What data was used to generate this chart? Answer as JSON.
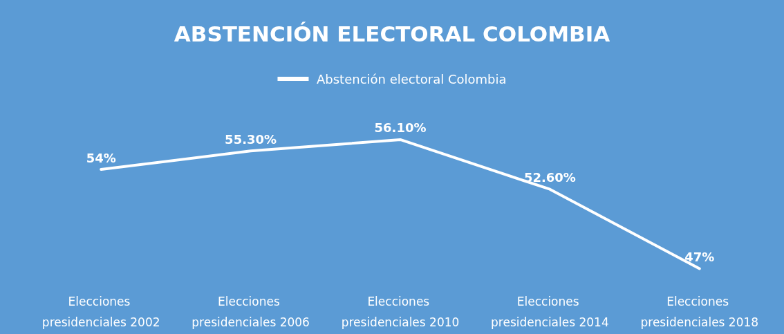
{
  "chart_data": {
    "type": "line",
    "title": "ABSTENCIÓN ELECTORAL COLOMBIA",
    "categories": [
      "Elecciones presidenciales 2002",
      "Elecciones presidenciales 2006",
      "Elecciones presidenciales 2010",
      "Elecciones presidenciales 2014",
      "Elecciones presidenciales 2018"
    ],
    "series": [
      {
        "name": "Abstención electoral Colombia",
        "color": "#ffffff",
        "values": [
          54,
          55.3,
          56.1,
          52.6,
          47
        ],
        "value_labels": [
          "54%",
          "55.30%",
          "56.10%",
          "52.60%",
          "47%"
        ]
      }
    ],
    "legend": "top",
    "grid": false,
    "marker": "none",
    "line_style": "solid"
  }
}
